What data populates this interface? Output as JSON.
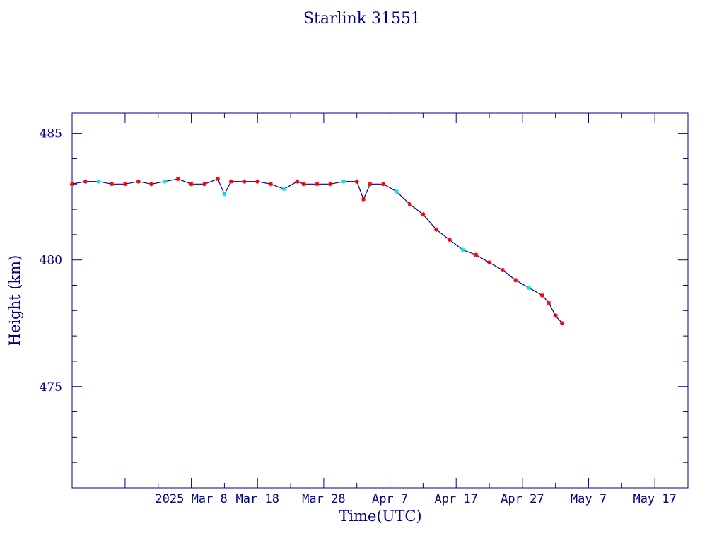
{
  "chart_data": {
    "type": "line",
    "title": "Starlink 31551",
    "xlabel": "Time(UTC)",
    "ylabel": "Height (km)",
    "ylim": [
      471.0,
      485.8
    ],
    "xlim": [
      "2025-02-18",
      "2025-05-22"
    ],
    "yticks_major": [
      475,
      480,
      485
    ],
    "xticks": [
      "2025 Mar  8",
      "Mar 18",
      "Mar 28",
      "Apr  7",
      "Apr 17",
      "Apr 27",
      "May  7",
      "May 17"
    ],
    "grid": false,
    "colors": {
      "line": "#00008b",
      "marker": "#ff0000",
      "marker_alt": "#00e5ee",
      "axis": "#00008b"
    },
    "series": [
      {
        "x": [
          "2025-02-18",
          "2025-02-20",
          "2025-02-22",
          "2025-02-24",
          "2025-02-26",
          "2025-02-28",
          "2025-03-02",
          "2025-03-04",
          "2025-03-06",
          "2025-03-08",
          "2025-03-10",
          "2025-03-12",
          "2025-03-13",
          "2025-03-14",
          "2025-03-16",
          "2025-03-18",
          "2025-03-20",
          "2025-03-22",
          "2025-03-24",
          "2025-03-25",
          "2025-03-27",
          "2025-03-29",
          "2025-03-31",
          "2025-04-02",
          "2025-04-03",
          "2025-04-04",
          "2025-04-06",
          "2025-04-08",
          "2025-04-10",
          "2025-04-12",
          "2025-04-14",
          "2025-04-16",
          "2025-04-18",
          "2025-04-20",
          "2025-04-22",
          "2025-04-24",
          "2025-04-26",
          "2025-04-28",
          "2025-04-30",
          "2025-05-01",
          "2025-05-02",
          "2025-05-03"
        ],
        "y": [
          483.0,
          483.1,
          483.1,
          483.0,
          483.0,
          483.1,
          483.0,
          483.1,
          483.2,
          483.0,
          483.0,
          483.2,
          482.6,
          483.1,
          483.1,
          483.1,
          483.0,
          482.8,
          483.1,
          483.0,
          483.0,
          483.0,
          483.1,
          483.1,
          482.4,
          483.0,
          483.0,
          482.7,
          482.2,
          481.8,
          481.2,
          480.8,
          480.4,
          480.2,
          479.9,
          479.6,
          479.2,
          478.9,
          478.6,
          478.3,
          477.8,
          477.5
        ]
      }
    ]
  }
}
